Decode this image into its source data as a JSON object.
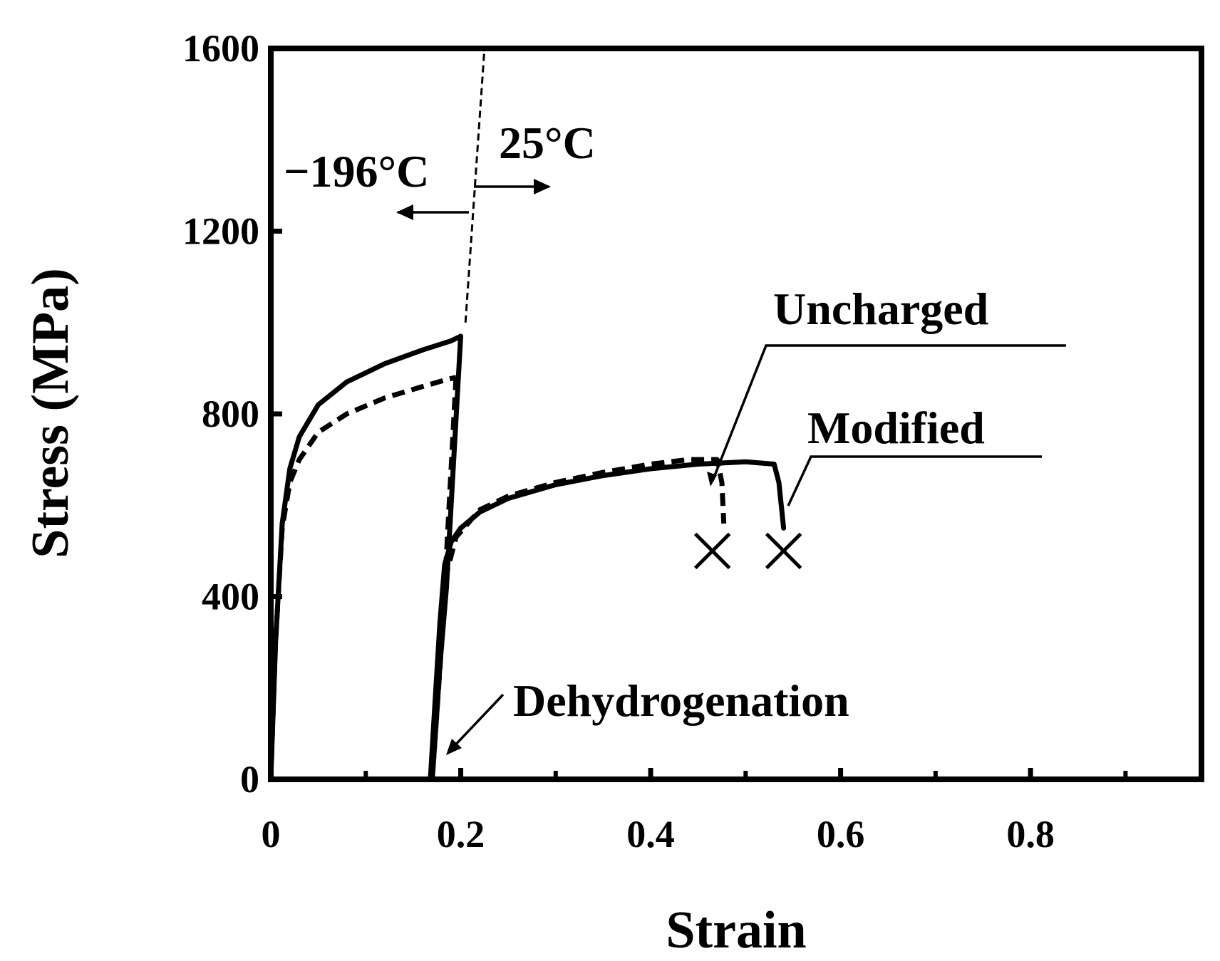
{
  "chart_data": {
    "type": "line",
    "title": "",
    "xlabel": "Strain",
    "ylabel": "Stress (MPa)",
    "xlim": [
      0,
      0.98
    ],
    "ylim": [
      0,
      1600
    ],
    "x_ticks": [
      {
        "value": 0,
        "label": "0"
      },
      {
        "value": 0.2,
        "label": "0.2"
      },
      {
        "value": 0.4,
        "label": "0.4"
      },
      {
        "value": 0.6,
        "label": "0.6"
      },
      {
        "value": 0.8,
        "label": "0.8"
      }
    ],
    "y_ticks": [
      {
        "value": 0,
        "label": "0"
      },
      {
        "value": 400,
        "label": "400"
      },
      {
        "value": 800,
        "label": "800"
      },
      {
        "value": 1200,
        "label": "1200"
      },
      {
        "value": 1600,
        "label": "1600"
      }
    ],
    "x_minor_ticks": [
      0.1,
      0.3,
      0.5,
      0.7,
      0.9
    ],
    "grid": false,
    "series": [
      {
        "name": "Uncharged",
        "style": "dashed",
        "segments": [
          {
            "x": [
              0,
              0.005,
              0.012,
              0.02,
              0.03,
              0.05,
              0.08,
              0.12,
              0.16,
              0.185,
              0.195
            ],
            "y": [
              0,
              300,
              550,
              650,
              700,
              760,
              800,
              835,
              860,
              875,
              880
            ]
          },
          {
            "x": [
              0.195,
              0.18,
              0.17
            ],
            "y": [
              880,
              300,
              0
            ]
          },
          {
            "x": [
              0.17,
              0.175,
              0.18,
              0.185,
              0.195,
              0.22,
              0.25,
              0.3,
              0.35,
              0.4,
              0.44,
              0.47,
              0.475,
              0.477
            ],
            "y": [
              0,
              150,
              310,
              450,
              530,
              590,
              620,
              650,
              672,
              690,
              700,
              700,
              650,
              560
            ]
          }
        ]
      },
      {
        "name": "Modified",
        "style": "solid",
        "segments": [
          {
            "x": [
              0,
              0.005,
              0.012,
              0.02,
              0.03,
              0.05,
              0.08,
              0.12,
              0.16,
              0.19,
              0.2
            ],
            "y": [
              0,
              300,
              560,
              680,
              750,
              820,
              870,
              910,
              940,
              960,
              970
            ]
          },
          {
            "x": [
              0.2,
              0.185,
              0.168
            ],
            "y": [
              970,
              420,
              0
            ]
          },
          {
            "x": [
              0.168,
              0.173,
              0.178,
              0.183,
              0.19,
              0.2,
              0.22,
              0.25,
              0.3,
              0.35,
              0.4,
              0.45,
              0.5,
              0.53,
              0.535,
              0.538,
              0.54
            ],
            "y": [
              0,
              170,
              340,
              470,
              520,
              550,
              585,
              615,
              645,
              665,
              680,
              690,
              695,
              690,
              650,
              590,
              550
            ]
          }
        ]
      }
    ],
    "fracture_markers": [
      {
        "series": "Uncharged",
        "x": 0.465,
        "y": 500,
        "symbol": "×"
      },
      {
        "series": "Modified",
        "x": 0.54,
        "y": 500,
        "symbol": "×"
      }
    ],
    "boundary_line": {
      "x": [
        0.205,
        0.225
      ],
      "y": [
        1000,
        1600
      ],
      "style": "dashed"
    },
    "annotations": {
      "low_temp": "−196°C",
      "room_temp": "25°C",
      "uncharged": "Uncharged",
      "modified": "Modified",
      "dehydrogenation": "Dehydrogenation"
    }
  }
}
